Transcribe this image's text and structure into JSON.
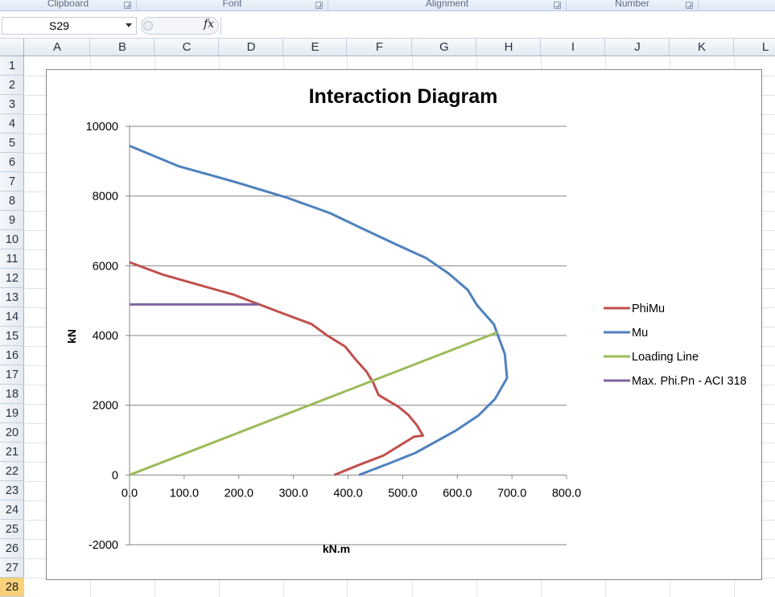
{
  "ribbon": {
    "groups": [
      {
        "label": "Clipboard"
      },
      {
        "label": "Font"
      },
      {
        "label": "Alignment"
      },
      {
        "label": "Number"
      }
    ]
  },
  "formula_bar": {
    "name_box": "S29",
    "fx_label": "fx",
    "formula": ""
  },
  "sheet": {
    "columns": [
      "A",
      "B",
      "C",
      "D",
      "E",
      "F",
      "G",
      "H",
      "I",
      "J",
      "K",
      "L"
    ],
    "rows": [
      "1",
      "2",
      "3",
      "4",
      "5",
      "6",
      "7",
      "8",
      "9",
      "10",
      "11",
      "12",
      "13",
      "14",
      "15",
      "16",
      "17",
      "18",
      "19",
      "20",
      "21",
      "22",
      "23",
      "24",
      "25",
      "26",
      "27",
      "28"
    ],
    "selected_row": "28"
  },
  "chart_data": {
    "type": "line",
    "title": "Interaction Diagram",
    "xlabel": "kN.m",
    "ylabel": "kN",
    "xlim": [
      0,
      800
    ],
    "ylim": [
      -2000,
      10000
    ],
    "xticks": [
      "0.0",
      "100.0",
      "200.0",
      "300.0",
      "400.0",
      "500.0",
      "600.0",
      "700.0",
      "800.0"
    ],
    "yticks": [
      "-2000",
      "0",
      "2000",
      "4000",
      "6000",
      "8000",
      "10000"
    ],
    "grid": "horizontal major gridlines",
    "legend_position": "right",
    "series": [
      {
        "name": "PhiMu",
        "color": "#c0504d",
        "points": [
          [
            375,
            0
          ],
          [
            420,
            290
          ],
          [
            465,
            560
          ],
          [
            493,
            830
          ],
          [
            521,
            1100
          ],
          [
            537,
            1130
          ],
          [
            526,
            1430
          ],
          [
            510,
            1730
          ],
          [
            492,
            1960
          ],
          [
            456,
            2290
          ],
          [
            446,
            2650
          ],
          [
            434,
            2960
          ],
          [
            415,
            3290
          ],
          [
            395,
            3680
          ],
          [
            361,
            4010
          ],
          [
            333,
            4330
          ],
          [
            285,
            4610
          ],
          [
            236,
            4900
          ],
          [
            189,
            5180
          ],
          [
            125,
            5460
          ],
          [
            62,
            5740
          ],
          [
            0,
            6100
          ]
        ]
      },
      {
        "name": "Mu",
        "color": "#4f81bd",
        "points": [
          [
            420,
            0
          ],
          [
            475,
            330
          ],
          [
            523,
            630
          ],
          [
            597,
            1270
          ],
          [
            639,
            1710
          ],
          [
            669,
            2180
          ],
          [
            691,
            2780
          ],
          [
            687,
            3470
          ],
          [
            667,
            4320
          ],
          [
            636,
            4870
          ],
          [
            619,
            5310
          ],
          [
            584,
            5780
          ],
          [
            543,
            6220
          ],
          [
            487,
            6620
          ],
          [
            427,
            7060
          ],
          [
            367,
            7510
          ],
          [
            287,
            7960
          ],
          [
            192,
            8410
          ],
          [
            89,
            8860
          ],
          [
            0,
            9440
          ]
        ]
      },
      {
        "name": "Loading Line",
        "color": "#9bbb59",
        "points": [
          [
            0,
            0
          ],
          [
            673,
            4090
          ]
        ]
      },
      {
        "name": "Max. Phi.Pn - ACI 318",
        "color": "#8064a2",
        "points": [
          [
            0,
            4890
          ],
          [
            236,
            4890
          ]
        ]
      }
    ]
  }
}
